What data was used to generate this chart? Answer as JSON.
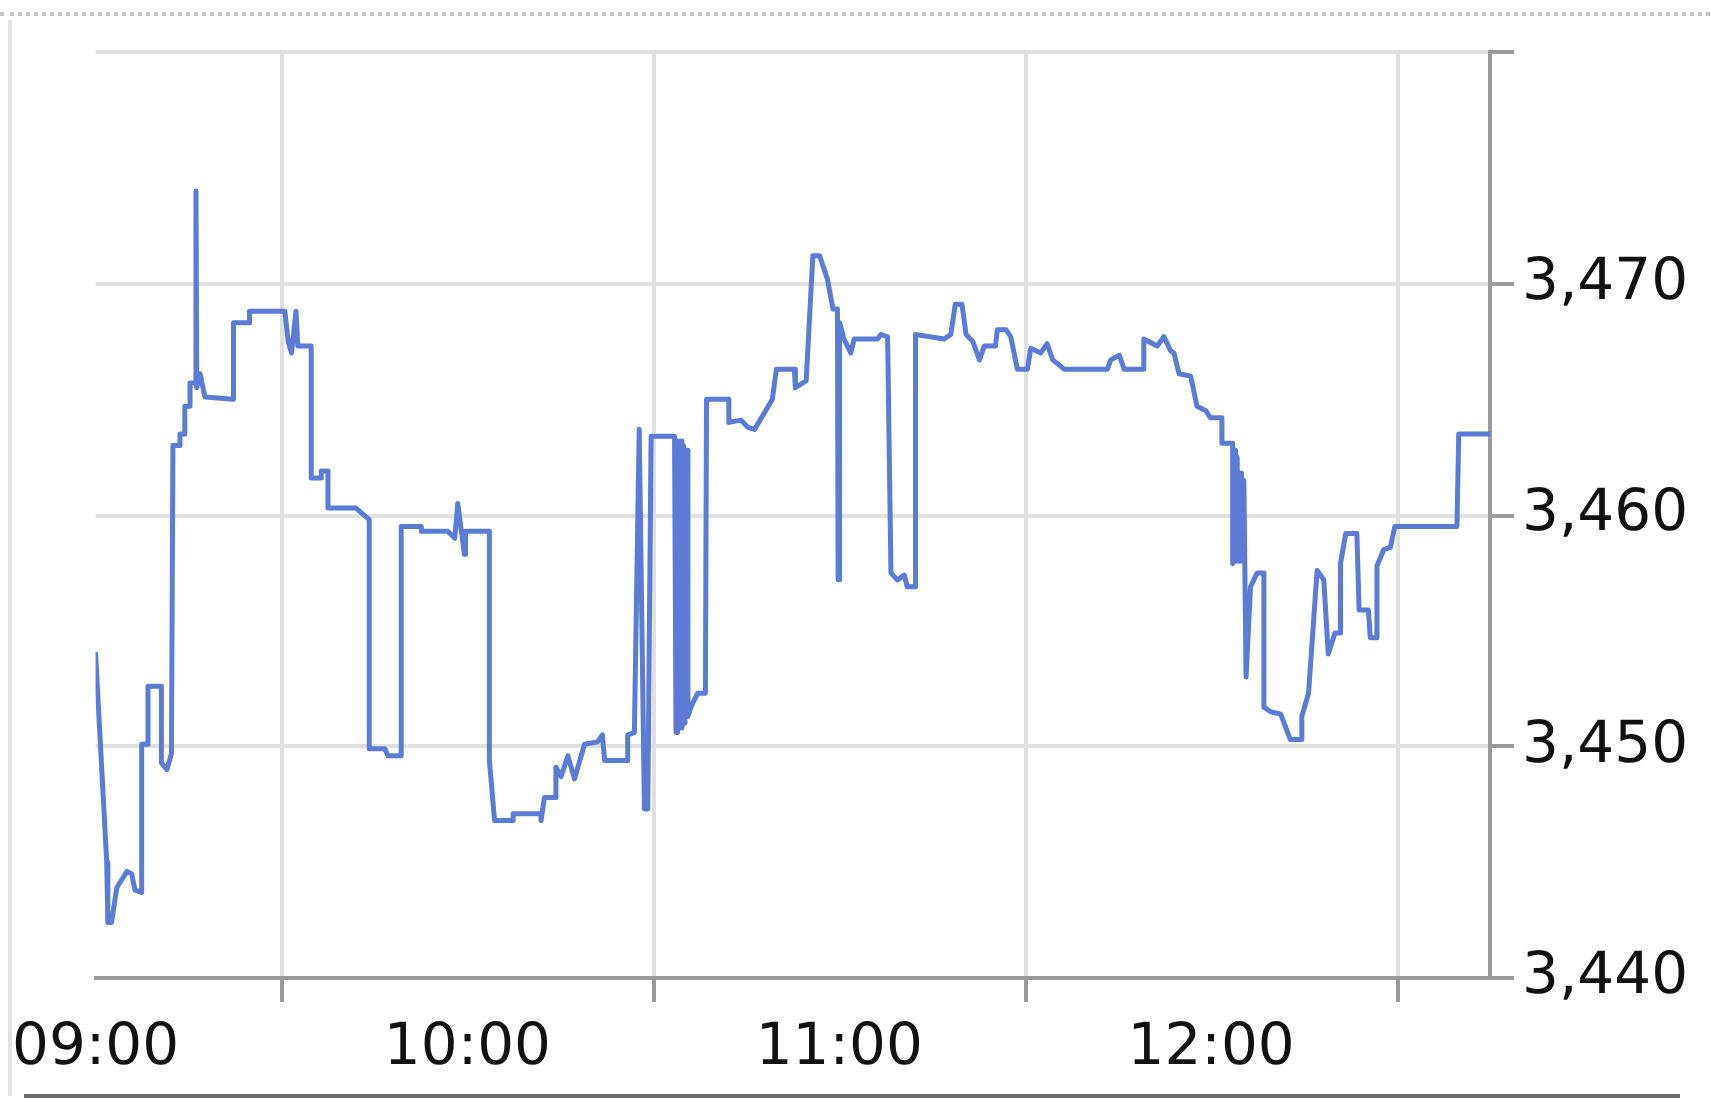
{
  "chart_data": {
    "type": "line",
    "x": [
      9.0,
      9.03,
      9.033,
      9.043,
      9.057,
      9.084,
      9.097,
      9.106,
      9.124,
      9.124,
      9.141,
      9.141,
      9.177,
      9.177,
      9.192,
      9.204,
      9.208,
      9.227,
      9.227,
      9.24,
      9.24,
      9.254,
      9.254,
      9.268,
      9.27,
      9.272,
      9.281,
      9.294,
      9.371,
      9.371,
      9.414,
      9.414,
      9.509,
      9.518,
      9.527,
      9.539,
      9.544,
      9.58,
      9.58,
      9.607,
      9.607,
      9.625,
      9.625,
      9.7,
      9.736,
      9.736,
      9.778,
      9.786,
      9.822,
      9.822,
      9.876,
      9.876,
      9.947,
      9.966,
      9.974,
      9.992,
      9.995,
      10.059,
      10.059,
      10.073,
      10.123,
      10.123,
      10.198,
      10.198,
      10.207,
      10.234,
      10.238,
      10.252,
      10.27,
      10.288,
      10.315,
      10.35,
      10.363,
      10.369,
      10.431,
      10.431,
      10.449,
      10.462,
      10.476,
      10.485,
      10.494,
      10.557,
      10.561,
      10.565,
      10.569,
      10.573,
      10.577,
      10.581,
      10.585,
      10.589,
      10.593,
      10.601,
      10.619,
      10.64,
      10.643,
      10.703,
      10.703,
      10.736,
      10.753,
      10.772,
      10.802,
      10.82,
      10.831,
      10.879,
      10.882,
      10.911,
      10.929,
      10.947,
      10.968,
      10.983,
      10.995,
      10.997,
      11.001,
      11.013,
      11.031,
      11.04,
      11.103,
      11.112,
      11.13,
      11.139,
      11.156,
      11.175,
      11.183,
      11.205,
      11.205,
      11.282,
      11.3,
      11.312,
      11.33,
      11.341,
      11.359,
      11.377,
      11.39,
      11.42,
      11.425,
      11.449,
      11.461,
      11.479,
      11.506,
      11.515,
      11.542,
      11.559,
      11.574,
      11.605,
      11.721,
      11.73,
      11.753,
      11.766,
      11.819,
      11.819,
      11.855,
      11.873,
      11.891,
      11.9,
      11.914,
      11.945,
      11.962,
      11.986,
      11.998,
      12.029,
      12.029,
      12.058,
      12.058,
      12.062,
      12.066,
      12.07,
      12.074,
      12.078,
      12.082,
      12.088,
      12.094,
      12.106,
      12.124,
      12.142,
      12.142,
      12.16,
      12.187,
      12.213,
      12.24,
      12.244,
      12.262,
      12.285,
      12.303,
      12.315,
      12.333,
      12.348,
      12.348,
      12.362,
      12.392,
      12.398,
      12.423,
      12.428,
      12.446,
      12.446,
      12.464,
      12.482,
      12.494,
      12.661,
      12.666,
      12.75
    ],
    "series": [
      {
        "color": "#5b7bd5",
        "values": [
          3454.0,
          3445.0,
          3442.4,
          3442.4,
          3443.9,
          3444.6,
          3444.5,
          3443.8,
          3443.7,
          3450.1,
          3450.1,
          3452.6,
          3452.6,
          3449.3,
          3449.0,
          3449.7,
          3463.0,
          3463.0,
          3463.5,
          3463.5,
          3464.7,
          3464.7,
          3465.7,
          3465.7,
          3474.0,
          3465.5,
          3466.1,
          3465.1,
          3465.0,
          3468.3,
          3468.3,
          3468.8,
          3468.8,
          3467.5,
          3467.0,
          3468.8,
          3467.3,
          3467.3,
          3461.6,
          3461.6,
          3461.9,
          3461.9,
          3460.3,
          3460.3,
          3459.8,
          3449.9,
          3449.9,
          3449.6,
          3449.6,
          3459.5,
          3459.5,
          3459.3,
          3459.3,
          3459.0,
          3460.5,
          3458.3,
          3459.3,
          3459.3,
          3449.4,
          3446.8,
          3446.8,
          3447.1,
          3447.1,
          3446.8,
          3447.8,
          3447.8,
          3449.1,
          3448.7,
          3449.6,
          3448.6,
          3450.1,
          3450.2,
          3450.5,
          3449.4,
          3449.4,
          3450.5,
          3450.6,
          3463.7,
          3447.3,
          3447.3,
          3463.4,
          3463.4,
          3450.6,
          3463.2,
          3450.8,
          3463.2,
          3450.8,
          3463.0,
          3451.0,
          3462.8,
          3451.3,
          3451.7,
          3452.3,
          3452.3,
          3465.0,
          3465.0,
          3464.0,
          3464.1,
          3463.8,
          3463.7,
          3464.5,
          3465.0,
          3466.3,
          3466.3,
          3465.5,
          3465.8,
          3471.2,
          3471.2,
          3470.2,
          3468.9,
          3468.9,
          3457.2,
          3468.3,
          3467.6,
          3467.0,
          3467.6,
          3467.6,
          3467.8,
          3467.7,
          3457.5,
          3457.2,
          3457.4,
          3456.9,
          3456.9,
          3467.8,
          3467.6,
          3467.8,
          3469.1,
          3469.1,
          3467.8,
          3467.5,
          3466.7,
          3467.3,
          3467.3,
          3468.0,
          3468.0,
          3467.7,
          3466.3,
          3466.3,
          3467.2,
          3467.0,
          3467.4,
          3466.7,
          3466.3,
          3466.3,
          3466.7,
          3466.9,
          3466.3,
          3466.3,
          3467.6,
          3467.3,
          3467.7,
          3467.1,
          3467.0,
          3466.1,
          3466.0,
          3464.7,
          3464.5,
          3464.2,
          3464.2,
          3463.1,
          3463.1,
          3457.9,
          3462.8,
          3458.0,
          3462.5,
          3458.0,
          3461.8,
          3458.0,
          3461.5,
          3453.0,
          3456.9,
          3457.5,
          3457.5,
          3451.7,
          3451.5,
          3451.4,
          3450.3,
          3450.3,
          3451.3,
          3452.3,
          3457.6,
          3457.2,
          3454.0,
          3454.9,
          3454.9,
          3457.9,
          3459.2,
          3459.2,
          3455.9,
          3455.9,
          3454.7,
          3454.7,
          3457.8,
          3458.5,
          3458.6,
          3459.5,
          3459.5,
          3463.5,
          3463.5
        ]
      }
    ],
    "xlim": [
      9,
      12.75
    ],
    "xticks": [
      {
        "value": 9,
        "label": "09:00"
      },
      {
        "value": 9.5,
        "label": null
      },
      {
        "value": 10,
        "label": "10:00"
      },
      {
        "value": 10.5,
        "label": null
      },
      {
        "value": 11,
        "label": "11:00"
      },
      {
        "value": 11.5,
        "label": null
      },
      {
        "value": 12,
        "label": "12:00"
      },
      {
        "value": 12.5,
        "label": null
      }
    ],
    "ylim": [
      3440,
      3480
    ],
    "yticks": [
      {
        "value": 3440,
        "label": "3,440"
      },
      {
        "value": 3450,
        "label": "3,450"
      },
      {
        "value": 3460,
        "label": "3,460"
      },
      {
        "value": 3470,
        "label": "3,470"
      },
      {
        "value": 3480,
        "label": null
      }
    ],
    "grid": true,
    "marker": "none",
    "line_style": "solid"
  }
}
